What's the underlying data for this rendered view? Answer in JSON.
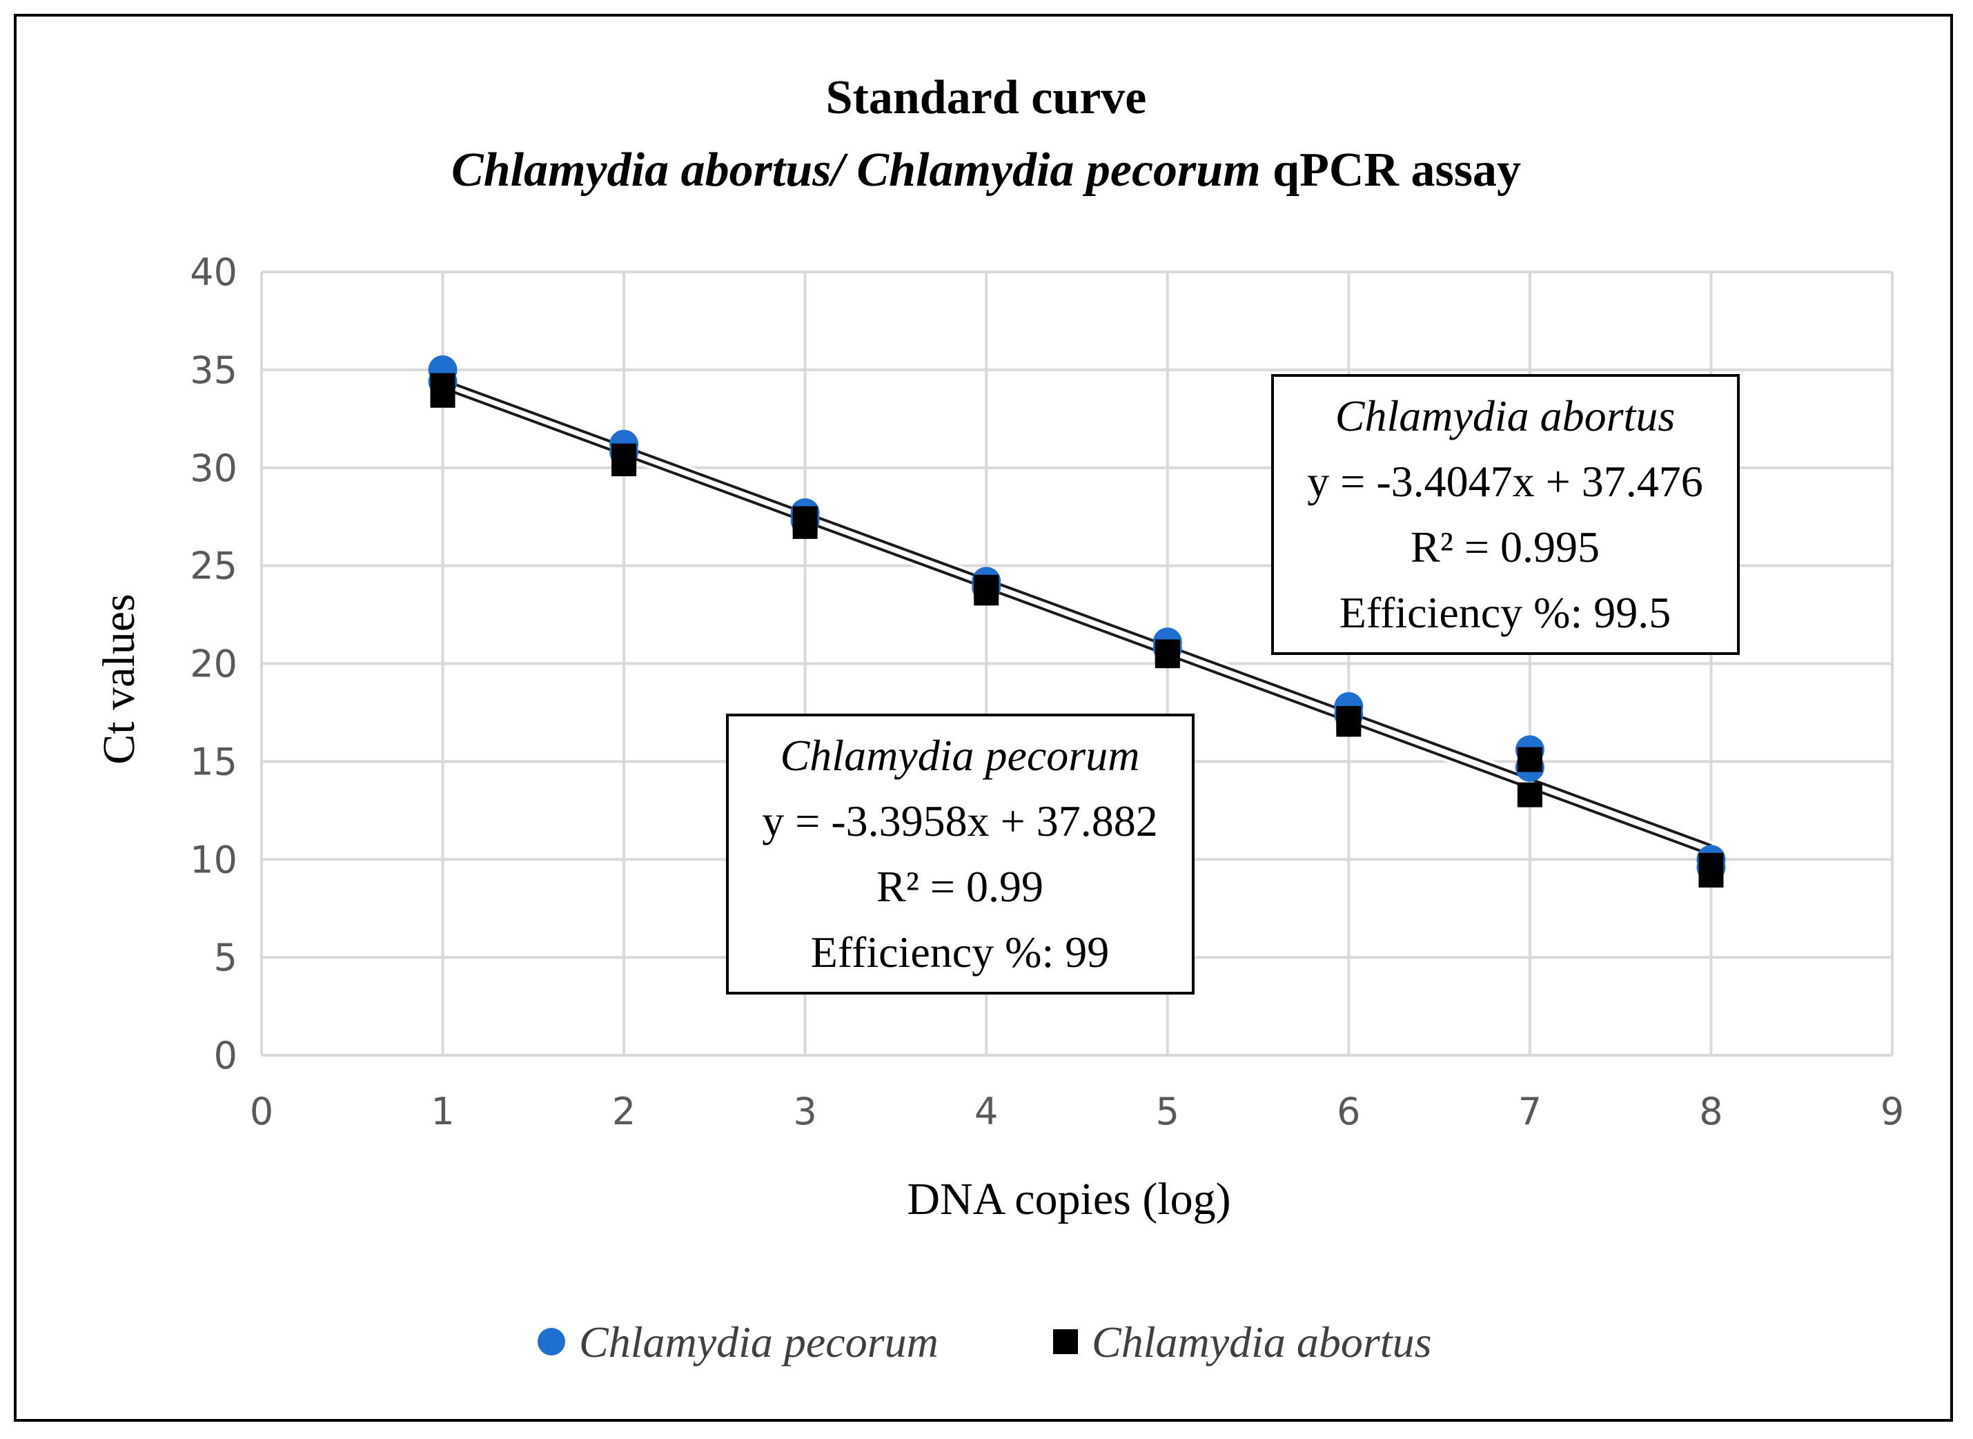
{
  "chart_data": {
    "type": "scatter",
    "title": "Standard curve",
    "subtitle_italic": "Chlamydia abortus/ Chlamydia pecorum",
    "subtitle_plain": " qPCR assay",
    "xlabel": "DNA copies (log)",
    "ylabel": "Ct values",
    "xlim": [
      0,
      9
    ],
    "ylim": [
      0,
      40
    ],
    "x_ticks": [
      0,
      1,
      2,
      3,
      4,
      5,
      6,
      7,
      8,
      9
    ],
    "y_ticks": [
      0,
      5,
      10,
      15,
      20,
      25,
      30,
      35,
      40
    ],
    "grid": true,
    "legend_position": "bottom",
    "series": [
      {
        "name": "Chlamydia pecorum",
        "marker": "circle",
        "color": "#1f6fd1",
        "x": [
          1,
          1,
          2,
          2,
          3,
          3,
          4,
          4,
          5,
          5,
          6,
          6,
          7,
          7,
          8,
          8
        ],
        "y": [
          35.0,
          34.4,
          31.2,
          30.8,
          27.7,
          27.3,
          24.2,
          23.9,
          21.1,
          20.8,
          17.8,
          17.4,
          15.6,
          14.7,
          10.0,
          9.6
        ],
        "trendline": {
          "slope": -3.3958,
          "intercept": 37.882
        },
        "equation_box": {
          "name": "Chlamydia pecorum",
          "equation": "y = -3.3958x + 37.882",
          "r2": "R² = 0.99",
          "efficiency": "Efficiency %: 99"
        }
      },
      {
        "name": "Chlamydia abortus",
        "marker": "square",
        "color": "#000000",
        "x": [
          1,
          1,
          2,
          2,
          3,
          3,
          4,
          4,
          5,
          5,
          6,
          6,
          7,
          7,
          8,
          8
        ],
        "y": [
          34.2,
          33.7,
          30.6,
          30.2,
          27.4,
          27.0,
          23.9,
          23.6,
          20.6,
          20.4,
          17.2,
          16.9,
          15.1,
          13.3,
          9.7,
          9.2
        ],
        "trendline": {
          "slope": -3.4047,
          "intercept": 37.476
        },
        "equation_box": {
          "name": "Chlamydia abortus",
          "equation": "y = -3.4047x + 37.476",
          "r2": "R² = 0.995",
          "efficiency": "Efficiency %: 99.5"
        }
      }
    ]
  }
}
